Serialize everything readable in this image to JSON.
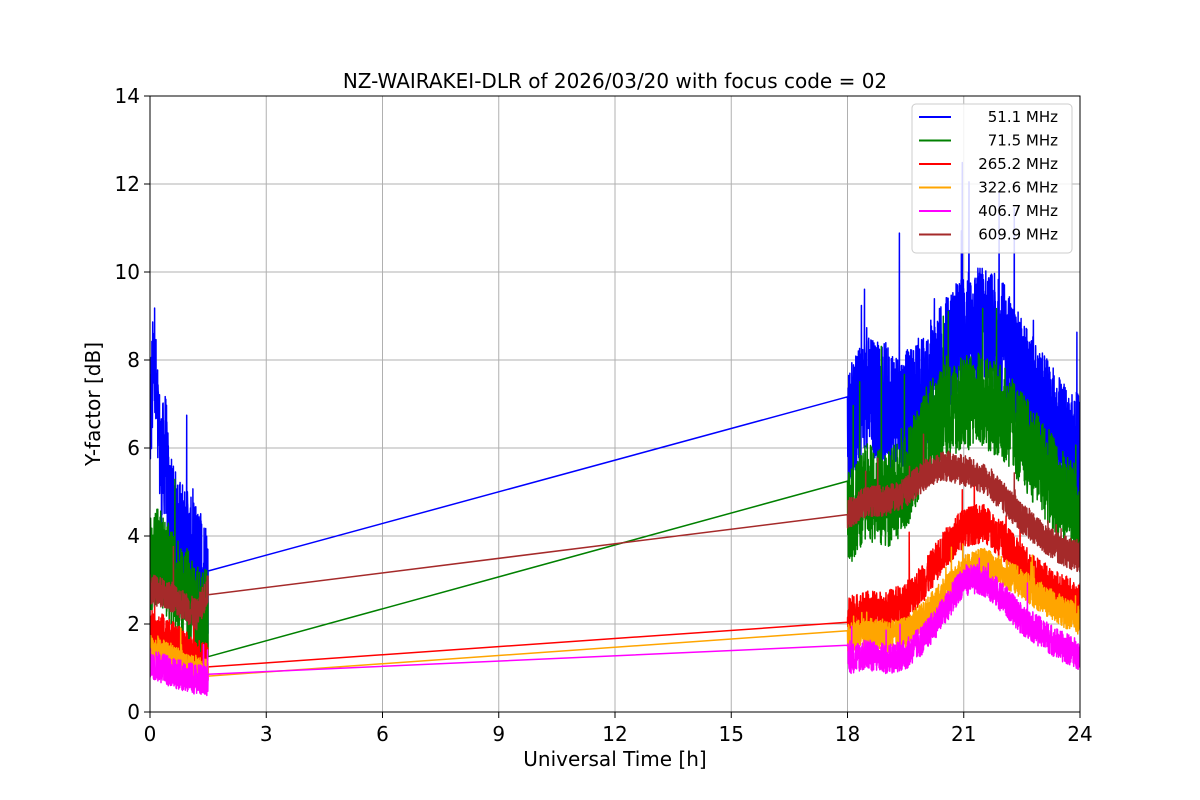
{
  "chart_data": {
    "type": "line",
    "title": "NZ-WAIRAKEI-DLR of 2026/03/20 with focus code = 02",
    "xlabel": "Universal Time [h]",
    "ylabel": "Y-factor [dB]",
    "xlim": [
      0,
      24
    ],
    "ylim": [
      0,
      14
    ],
    "xticks": [
      "0",
      "3",
      "6",
      "9",
      "12",
      "15",
      "18",
      "21",
      "24"
    ],
    "yticks": [
      "0",
      "2",
      "4",
      "6",
      "8",
      "10",
      "12",
      "14"
    ],
    "grid": true,
    "legend_position": "top-right",
    "series": [
      {
        "name": "51.1 MHz",
        "color": "#0000ff",
        "noise": 1.4,
        "x": [
          0,
          0.1,
          0.2,
          0.3,
          0.4,
          0.5,
          0.7,
          0.9,
          1.1,
          1.3,
          1.5,
          18,
          18.5,
          19,
          19.5,
          20,
          20.5,
          21,
          21.5,
          22,
          22.5,
          23,
          23.5,
          24
        ],
        "values": [
          6.5,
          8.0,
          6.5,
          5.5,
          6.0,
          4.5,
          4.0,
          3.8,
          3.4,
          3.2,
          3.0,
          6.5,
          7.2,
          7.0,
          6.8,
          7.3,
          8.0,
          8.6,
          8.8,
          8.4,
          7.6,
          6.8,
          6.2,
          5.8
        ]
      },
      {
        "name": "71.5 MHz",
        "color": "#008000",
        "noise": 1.1,
        "x": [
          0,
          0.2,
          0.4,
          0.6,
          0.8,
          1.0,
          1.2,
          1.5,
          18,
          18.5,
          19,
          19.5,
          20,
          20.5,
          21,
          21.5,
          22,
          22.5,
          23,
          23.5,
          24
        ],
        "values": [
          3.3,
          3.6,
          3.3,
          3.0,
          2.8,
          2.6,
          2.2,
          2.3,
          4.3,
          5.0,
          4.8,
          5.2,
          6.3,
          6.8,
          7.0,
          7.1,
          6.8,
          6.2,
          5.6,
          4.9,
          4.4
        ]
      },
      {
        "name": "265.2 MHz",
        "color": "#ff0000",
        "noise": 0.45,
        "x": [
          0,
          0.3,
          0.6,
          0.9,
          1.2,
          1.5,
          18,
          18.5,
          19,
          19.5,
          20,
          20.5,
          21,
          21.5,
          22,
          22.5,
          23,
          23.5,
          24
        ],
        "values": [
          1.9,
          1.8,
          1.6,
          1.4,
          1.2,
          1.1,
          2.2,
          2.3,
          2.3,
          2.5,
          3.0,
          3.7,
          4.2,
          4.3,
          3.9,
          3.4,
          3.0,
          2.7,
          2.5
        ]
      },
      {
        "name": "322.6 MHz",
        "color": "#ffa500",
        "noise": 0.35,
        "x": [
          0,
          0.3,
          0.6,
          0.9,
          1.2,
          1.5,
          18,
          18.5,
          19,
          19.5,
          20,
          20.5,
          21,
          21.5,
          22,
          22.5,
          23,
          23.5,
          24
        ],
        "values": [
          1.4,
          1.3,
          1.2,
          1.0,
          0.9,
          0.85,
          1.7,
          1.8,
          1.7,
          1.8,
          2.2,
          2.7,
          3.2,
          3.4,
          3.2,
          2.9,
          2.6,
          2.3,
          2.1
        ]
      },
      {
        "name": "406.7 MHz",
        "color": "#ff00ff",
        "noise": 0.35,
        "x": [
          0,
          0.3,
          0.6,
          0.9,
          1.2,
          1.5,
          18,
          18.5,
          19,
          19.5,
          20,
          20.5,
          21,
          21.5,
          22,
          22.5,
          23,
          23.5,
          24
        ],
        "values": [
          1.1,
          1.0,
          0.9,
          0.8,
          0.75,
          0.7,
          1.2,
          1.3,
          1.2,
          1.3,
          1.7,
          2.3,
          3.0,
          3.0,
          2.6,
          2.1,
          1.8,
          1.5,
          1.3
        ]
      },
      {
        "name": "609.9 MHz",
        "color": "#a52a2a",
        "noise": 0.35,
        "x": [
          0,
          0.3,
          0.6,
          0.9,
          1.2,
          1.5,
          18,
          18.5,
          19,
          19.5,
          20,
          20.5,
          21,
          21.5,
          22,
          22.5,
          23,
          23.5,
          24
        ],
        "values": [
          2.8,
          2.7,
          2.6,
          2.4,
          2.2,
          2.8,
          4.5,
          4.8,
          4.8,
          5.0,
          5.4,
          5.6,
          5.5,
          5.3,
          4.9,
          4.4,
          4.0,
          3.7,
          3.5
        ]
      }
    ]
  }
}
